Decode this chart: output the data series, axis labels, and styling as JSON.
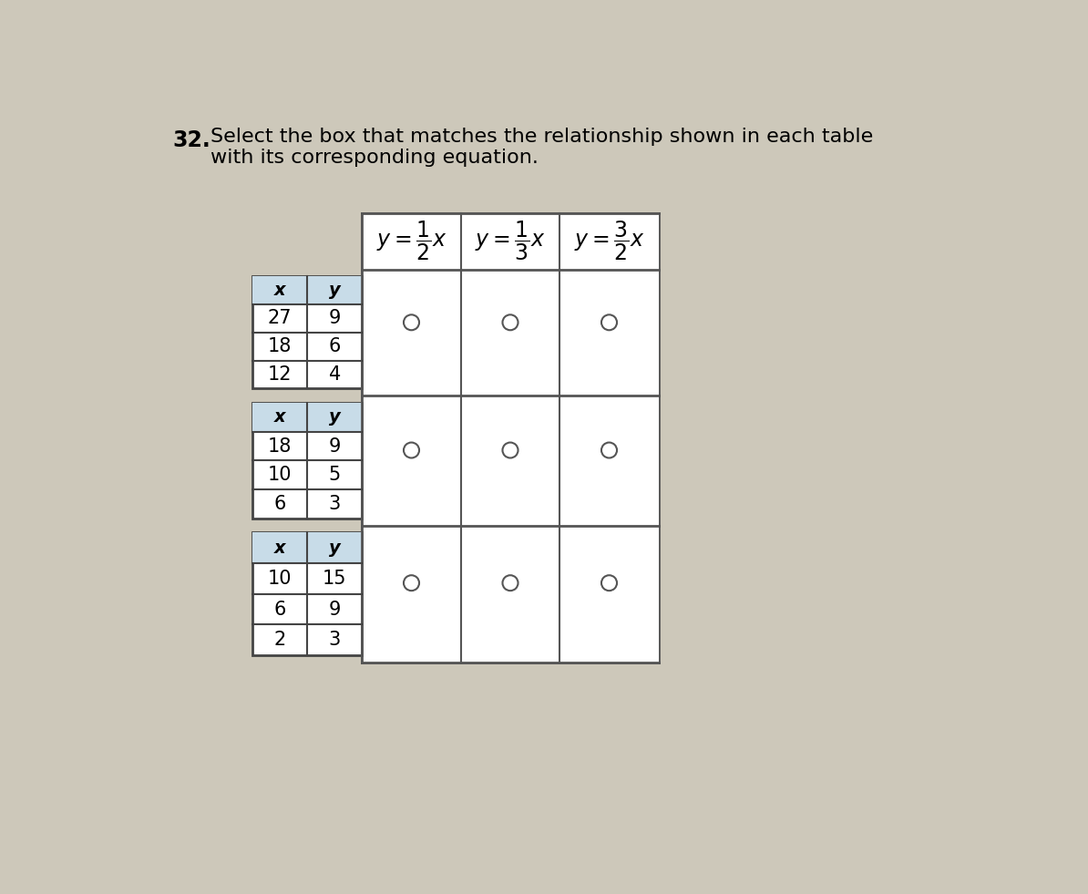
{
  "title_number": "32.",
  "title_text": "Select the box that matches the relationship shown in each table\nwith its corresponding equation.",
  "background_color": "#cdc8ba",
  "eq_texts": [
    "$y = \\dfrac{1}{2}x$",
    "$y = \\dfrac{1}{3}x$",
    "$y = \\dfrac{3}{2}x$"
  ],
  "tables": [
    {
      "x": [
        27,
        18,
        12
      ],
      "y": [
        9,
        6,
        4
      ]
    },
    {
      "x": [
        18,
        10,
        6
      ],
      "y": [
        9,
        5,
        3
      ]
    },
    {
      "x": [
        10,
        6,
        2
      ],
      "y": [
        15,
        9,
        3
      ]
    }
  ],
  "outer_border_color": "#555555",
  "cell_border_color": "#888888",
  "sub_table_border_color": "#444444",
  "header_bg": "#c8dce8",
  "white": "#ffffff",
  "circle_edge_color": "#555555",
  "title_fontsize": 17,
  "eq_fontsize": 17,
  "data_fontsize": 15,
  "header_label_fontsize": 14
}
